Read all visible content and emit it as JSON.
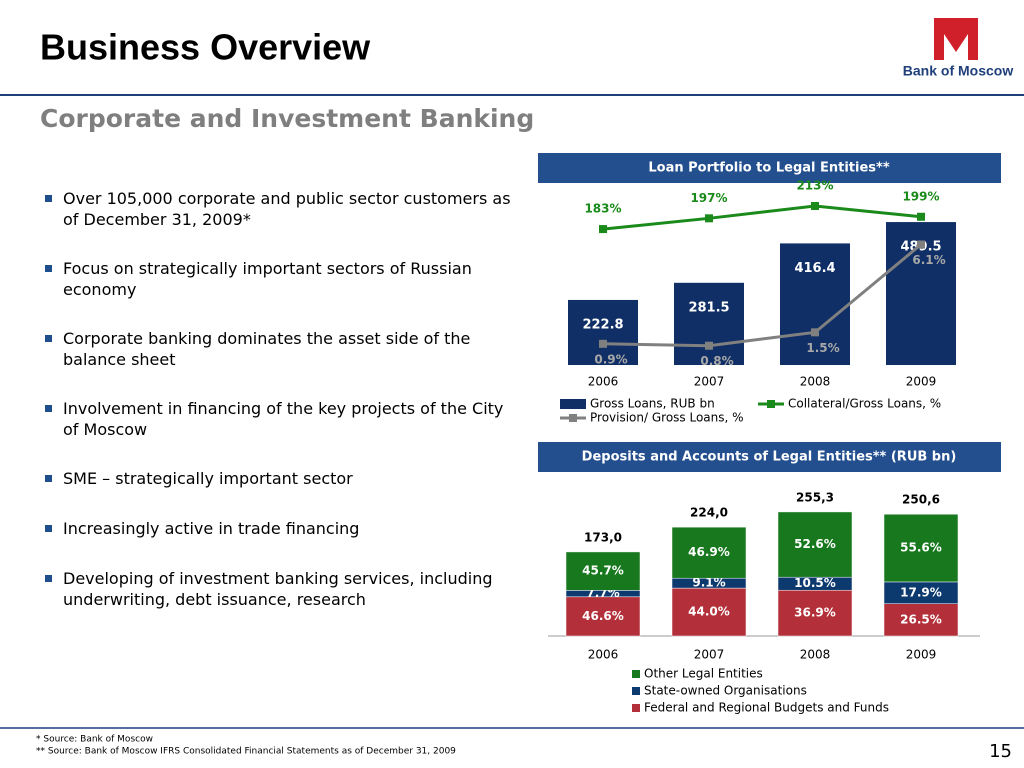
{
  "header": {
    "title": "Business Overview",
    "subtitle": "Corporate and Investment Banking",
    "logo_text": "Bank of Moscow",
    "page_number": "15"
  },
  "bullets": [
    "Over 105,000 corporate and public sector customers as of December 31, 2009*",
    "Focus on strategically important sectors of Russian economy",
    "Corporate banking dominates the asset side of the balance sheet",
    "Involvement in financing of the key projects of the City of Moscow",
    "SME – strategically important sector",
    "Increasingly active in trade financing",
    "Developing of investment banking services, including underwriting, debt issuance, research"
  ],
  "footnotes": [
    "*   Source: Bank of Moscow",
    "** Source: Bank of Moscow IFRS Consolidated Financial Statements as of  December 31, 2009"
  ],
  "chart_data": [
    {
      "type": "bar_line",
      "title": "Loan Portfolio to Legal Entities**",
      "categories": [
        "2006",
        "2007",
        "2008",
        "2009"
      ],
      "series": [
        {
          "name": "Gross Loans, RUB bn",
          "type": "bar",
          "color": "#0f2f66",
          "values": [
            222.8,
            281.5,
            416.4,
            489.5
          ]
        },
        {
          "name": "Collateral/Gross Loans, %",
          "type": "line",
          "color": "#1a8a1a",
          "values": [
            183,
            197,
            213,
            199
          ],
          "value_labels": [
            "183%",
            "197%",
            "213%",
            "199%"
          ]
        },
        {
          "name": "Provision/ Gross Loans, %",
          "type": "line",
          "color": "#808080",
          "values": [
            0.9,
            0.8,
            1.5,
            6.1
          ],
          "value_labels": [
            "0.9%",
            "0.8%",
            "1.5%",
            "6.1%"
          ]
        }
      ]
    },
    {
      "type": "stacked_bar",
      "title": "Deposits and Accounts of Legal Entities** (RUB bn)",
      "categories": [
        "2006",
        "2007",
        "2008",
        "2009"
      ],
      "totals": {
        "values": [
          173.0,
          224.0,
          255.3,
          250.6
        ],
        "value_labels": [
          "173,0",
          "224,0",
          "255,3",
          "250,6"
        ]
      },
      "series": [
        {
          "name": "Other Legal Entities",
          "color": "#18781e",
          "values": [
            45.7,
            46.9,
            52.6,
            55.6
          ],
          "value_labels": [
            "45.7%",
            "46.9%",
            "52.6%",
            "55.6%"
          ]
        },
        {
          "name": "State-owned Organisations",
          "color": "#0d3a6e",
          "values": [
            7.7,
            9.1,
            10.5,
            17.9
          ],
          "value_labels": [
            "7.7%",
            "9.1%",
            "10.5%",
            "17.9%"
          ]
        },
        {
          "name": "Federal and Regional Budgets and Funds",
          "color": "#b3303a",
          "values": [
            46.6,
            44.0,
            36.9,
            26.5
          ],
          "value_labels": [
            "46.6%",
            "44.0%",
            "36.9%",
            "26.5%"
          ]
        }
      ]
    }
  ]
}
